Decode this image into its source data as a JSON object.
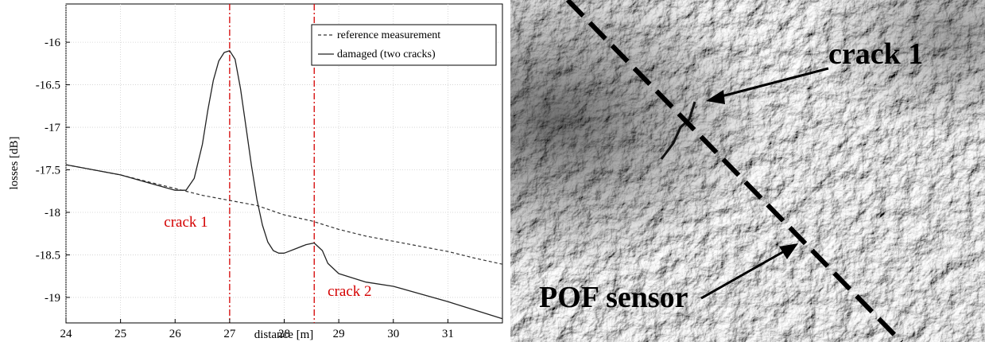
{
  "chart_data": {
    "type": "line",
    "title": "",
    "xlabel": "distance [m]",
    "ylabel": "losses [dB]",
    "xlim": [
      24,
      32
    ],
    "ylim": [
      -19.3,
      -15.55
    ],
    "xticks": [
      24,
      25,
      26,
      27,
      28,
      29,
      30,
      31
    ],
    "yticks": [
      -19,
      -18.5,
      -18,
      -17.5,
      -17,
      -16.5,
      -16
    ],
    "xtick_labels": [
      "24",
      "25",
      "26",
      "27",
      "28",
      "29",
      "30",
      "31"
    ],
    "ytick_labels": [
      "-19",
      "-18.5",
      "-18",
      "-17.5",
      "-17",
      "-16.5",
      "-16"
    ],
    "grid": true,
    "legend_position": "top-right",
    "series": [
      {
        "name": "reference measurement",
        "style": "dashed",
        "x": [
          24,
          24.5,
          25,
          25.5,
          26,
          26.5,
          27,
          27.5,
          28,
          28.5,
          29,
          29.5,
          30,
          30.5,
          31,
          31.5,
          32
        ],
        "y": [
          -17.44,
          -17.5,
          -17.56,
          -17.64,
          -17.72,
          -17.8,
          -17.86,
          -17.92,
          -18.03,
          -18.1,
          -18.2,
          -18.28,
          -18.34,
          -18.4,
          -18.46,
          -18.54,
          -18.61
        ]
      },
      {
        "name": "damaged (two cracks)",
        "style": "solid",
        "x": [
          24,
          24.5,
          25,
          25.5,
          26,
          26.2,
          26.35,
          26.5,
          26.6,
          26.7,
          26.8,
          26.9,
          27,
          27.1,
          27.2,
          27.3,
          27.4,
          27.5,
          27.6,
          27.7,
          27.8,
          27.9,
          28,
          28.2,
          28.4,
          28.55,
          28.7,
          28.8,
          29,
          29.5,
          30,
          30.5,
          31,
          31.5,
          32
        ],
        "y": [
          -17.44,
          -17.5,
          -17.56,
          -17.65,
          -17.74,
          -17.74,
          -17.6,
          -17.2,
          -16.8,
          -16.45,
          -16.22,
          -16.12,
          -16.1,
          -16.2,
          -16.55,
          -17.0,
          -17.45,
          -17.85,
          -18.15,
          -18.35,
          -18.45,
          -18.48,
          -18.48,
          -18.43,
          -18.38,
          -18.36,
          -18.45,
          -18.6,
          -18.72,
          -18.82,
          -18.87,
          -18.96,
          -19.05,
          -19.15,
          -19.25
        ]
      }
    ],
    "vlines": [
      27,
      28.55
    ],
    "annotations": [
      {
        "text": "crack 1",
        "x": 26.2,
        "y": -18.17
      },
      {
        "text": "crack 2",
        "x": 29.2,
        "y": -18.98
      }
    ]
  },
  "photo": {
    "labels": {
      "crack1": "crack 1",
      "sensor": "POF sensor"
    },
    "icon": "concrete-fracture-photo"
  }
}
